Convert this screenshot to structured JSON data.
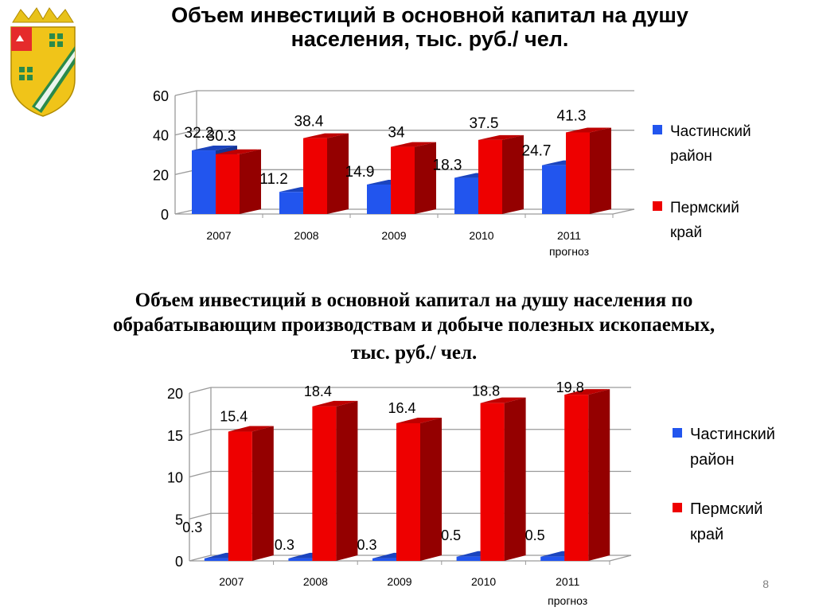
{
  "slide": {
    "title1": "Объем инвестиций в основной капитал на душу населения,  тыс. руб./ чел.",
    "title2_line1": "Объем инвестиций в основной капитал на душу населения по",
    "title2_line2": "обрабатывающим производствам и добыче полезных ископаемых,",
    "title2_line3": "тыс. руб./ чел.",
    "page_number": "8"
  },
  "legend": {
    "series1_label": "Частинский район",
    "series2_label": "Пермский край"
  },
  "colors": {
    "series1": "#2255ee",
    "series2": "#ee0000"
  },
  "chart_data": [
    {
      "type": "bar",
      "title": "Объем инвестиций в основной капитал на душу населения,  тыс. руб./ чел.",
      "categories": [
        "2007",
        "2008",
        "2009",
        "2010",
        "2011 прогноз"
      ],
      "series": [
        {
          "name": "Частинский район",
          "values": [
            32.2,
            11.2,
            14.9,
            18.3,
            24.7
          ]
        },
        {
          "name": "Пермский край",
          "values": [
            30.3,
            38.4,
            34,
            37.5,
            41.3
          ]
        }
      ],
      "ylim": [
        0,
        60
      ],
      "yticks": [
        0,
        20,
        40,
        60
      ],
      "grid": true,
      "legend": "right"
    },
    {
      "type": "bar",
      "title": "Объем инвестиций в основной капитал на душу населения по обрабатывающим производствам и добыче полезных ископаемых, тыс. руб./ чел.",
      "categories": [
        "2007",
        "2008",
        "2009",
        "2010",
        "2011 прогноз"
      ],
      "series": [
        {
          "name": "Частинский район",
          "values": [
            0.3,
            0.3,
            0.3,
            0.5,
            0.5
          ]
        },
        {
          "name": "Пермский край",
          "values": [
            15.4,
            18.4,
            16.4,
            18.8,
            19.8
          ]
        }
      ],
      "ylim": [
        0,
        20
      ],
      "yticks": [
        0,
        5,
        10,
        15,
        20
      ],
      "grid": true,
      "legend": "right"
    }
  ]
}
